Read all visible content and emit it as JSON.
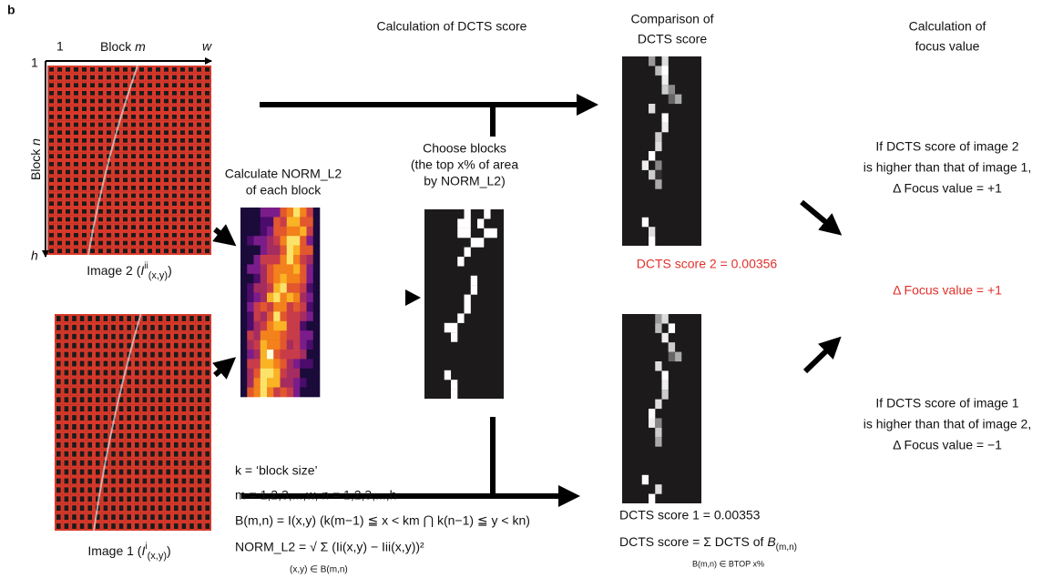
{
  "panel_label": "b",
  "headers": {
    "dcts": "Calculation of DCTS score",
    "comparison": [
      "Comparison of",
      "DCTS score"
    ],
    "focus": [
      "Calculation of",
      "focus value"
    ]
  },
  "axes": {
    "x": [
      "1",
      "Block ",
      "m",
      "w"
    ],
    "y": [
      "1",
      "Block ",
      "n",
      "h"
    ]
  },
  "image2": {
    "label": [
      "Image 2 (",
      "I",
      "ii",
      "(x,y)",
      ")"
    ]
  },
  "image1": {
    "label": [
      "Image 1 (",
      "I",
      "i",
      "(x,y)",
      ")"
    ]
  },
  "norm_step": [
    "Calculate NORM_L2",
    "of each block"
  ],
  "choose_step": [
    "Choose blocks",
    "(the top x% of area",
    "by NORM_L2)"
  ],
  "score2": "DCTS score 2 = 0.00356",
  "score1": "DCTS score 1 = 0.00353",
  "score_def": [
    "DCTS score = Σ DCTS of ",
    "B",
    "(m,n)"
  ],
  "score_def_sub": "B(m,n) ∈ BTOP x%",
  "focus_result": "Δ Focus value = +1",
  "rule2": [
    "If DCTS score of image 2",
    "is higher than that of image 1,",
    "Δ Focus value = +1"
  ],
  "rule1": [
    "If DCTS score of image 1",
    "is higher than that of image 2,",
    "Δ Focus value = −1"
  ],
  "formulas": [
    "k = ‘block size’",
    "m = 1,2,3,...,w, n = 1,2,3,...,h",
    "B(m,n) = I(x,y) (k(m−1) ≦ x < km ⋂ k(n−1) ≦ y < kn)",
    "NORM_L2 = √ Σ   (Ii(x,y) − Iii(x,y))²",
    "(x,y) ∈ B(m,n)"
  ]
}
